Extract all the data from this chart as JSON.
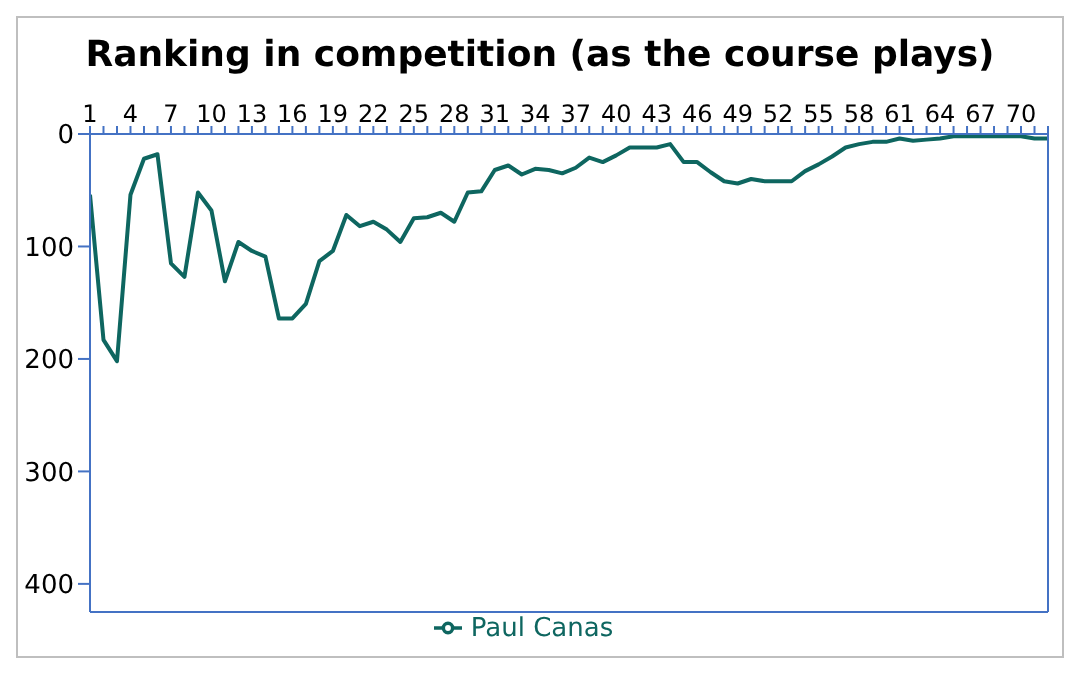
{
  "chart_data": {
    "type": "line",
    "title": "Ranking in competition (as the course plays)",
    "x": [
      1,
      2,
      3,
      4,
      5,
      6,
      7,
      8,
      9,
      10,
      11,
      12,
      13,
      14,
      15,
      16,
      17,
      18,
      19,
      20,
      21,
      22,
      23,
      24,
      25,
      26,
      27,
      28,
      29,
      30,
      31,
      32,
      33,
      34,
      35,
      36,
      37,
      38,
      39,
      40,
      41,
      42,
      43,
      44,
      45,
      46,
      47,
      48,
      49,
      50,
      51,
      52,
      53,
      54,
      55,
      56,
      57,
      58,
      59,
      60,
      61,
      62,
      63,
      64,
      65,
      66,
      67,
      68,
      69,
      70,
      71,
      72
    ],
    "series": [
      {
        "name": "Paul Canas",
        "color": "#0e6660",
        "values": [
          54,
          183,
          202,
          54,
          22,
          18,
          115,
          127,
          52,
          68,
          131,
          96,
          104,
          109,
          164,
          164,
          151,
          113,
          104,
          72,
          82,
          78,
          85,
          96,
          75,
          74,
          70,
          78,
          52,
          51,
          32,
          28,
          36,
          31,
          32,
          35,
          30,
          21,
          25,
          19,
          12,
          12,
          12,
          9,
          25,
          25,
          34,
          42,
          44,
          40,
          42,
          42,
          42,
          33,
          27,
          20,
          12,
          9,
          7,
          7,
          4,
          6,
          5,
          4,
          2,
          2,
          2,
          2,
          2,
          2,
          4,
          4
        ]
      }
    ],
    "xlim": [
      1,
      72
    ],
    "xticks": [
      1,
      {
        "value": 2,
        "label": null
      },
      {
        "value": 3,
        "label": null
      },
      4,
      {
        "value": 5,
        "label": null
      },
      {
        "value": 6,
        "label": null
      },
      7,
      {
        "value": 8,
        "label": null
      },
      {
        "value": 9,
        "label": null
      },
      10,
      {
        "value": 11,
        "label": null
      },
      {
        "value": 12,
        "label": null
      },
      13,
      {
        "value": 14,
        "label": null
      },
      {
        "value": 15,
        "label": null
      },
      16,
      {
        "value": 17,
        "label": null
      },
      {
        "value": 18,
        "label": null
      },
      19,
      {
        "value": 20,
        "label": null
      },
      {
        "value": 21,
        "label": null
      },
      22,
      {
        "value": 23,
        "label": null
      },
      {
        "value": 24,
        "label": null
      },
      25,
      {
        "value": 26,
        "label": null
      },
      {
        "value": 27,
        "label": null
      },
      28,
      {
        "value": 29,
        "label": null
      },
      {
        "value": 30,
        "label": null
      },
      31,
      {
        "value": 32,
        "label": null
      },
      {
        "value": 33,
        "label": null
      },
      34,
      {
        "value": 35,
        "label": null
      },
      {
        "value": 36,
        "label": null
      },
      37,
      {
        "value": 38,
        "label": null
      },
      {
        "value": 39,
        "label": null
      },
      40,
      {
        "value": 41,
        "label": null
      },
      {
        "value": 42,
        "label": null
      },
      43,
      {
        "value": 44,
        "label": null
      },
      {
        "value": 45,
        "label": null
      },
      46,
      {
        "value": 47,
        "label": null
      },
      {
        "value": 48,
        "label": null
      },
      49,
      {
        "value": 50,
        "label": null
      },
      {
        "value": 51,
        "label": null
      },
      52,
      {
        "value": 53,
        "label": null
      },
      {
        "value": 54,
        "label": null
      },
      55,
      {
        "value": 56,
        "label": null
      },
      {
        "value": 57,
        "label": null
      },
      58,
      {
        "value": 59,
        "label": null
      },
      {
        "value": 60,
        "label": null
      },
      61,
      {
        "value": 62,
        "label": null
      },
      {
        "value": 63,
        "label": null
      },
      64,
      {
        "value": 65,
        "label": null
      },
      {
        "value": 66,
        "label": null
      },
      67,
      {
        "value": 68,
        "label": null
      },
      {
        "value": 69,
        "label": null
      },
      70,
      {
        "value": 71,
        "label": null
      },
      {
        "value": 72,
        "label": null
      }
    ],
    "ylim": [
      425,
      0
    ],
    "yticks": [
      0,
      100,
      200,
      300,
      400
    ],
    "grid": false,
    "legend": "bottom",
    "marker": "none",
    "line_style": "solid"
  }
}
